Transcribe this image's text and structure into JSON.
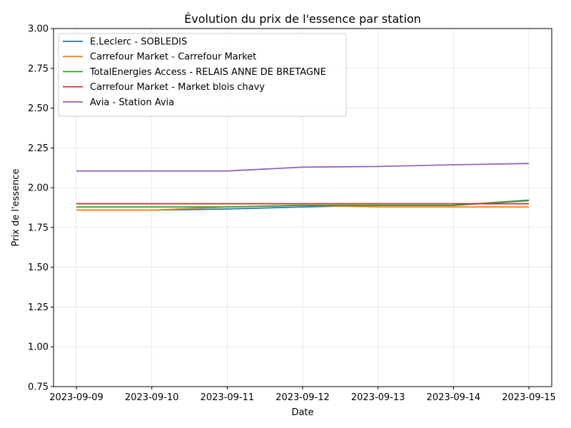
{
  "chart_data": {
    "type": "line",
    "title": "Évolution du prix de l'essence par station",
    "xlabel": "Date",
    "ylabel": "Prix de l'essence",
    "x": [
      "2023-09-09",
      "2023-09-10",
      "2023-09-11",
      "2023-09-12",
      "2023-09-13",
      "2023-09-14",
      "2023-09-15"
    ],
    "ylim": [
      0.75,
      3.0
    ],
    "yticks": [
      "0.75",
      "1.00",
      "1.25",
      "1.50",
      "1.75",
      "2.00",
      "2.25",
      "2.50",
      "2.75",
      "3.00"
    ],
    "grid": true,
    "legend_position": "top-left",
    "series": [
      {
        "name": "E.Leclerc - SOBLEDIS",
        "color": "#1f77b4",
        "values": [
          1.859,
          1.859,
          1.866,
          1.879,
          1.889,
          1.889,
          1.919
        ]
      },
      {
        "name": "Carrefour Market - Carrefour Market",
        "color": "#ff7f0e",
        "values": [
          1.859,
          1.859,
          1.879,
          1.889,
          1.879,
          1.879,
          1.879
        ]
      },
      {
        "name": "TotalEnergies Access - RELAIS ANNE DE BRETAGNE",
        "color": "#2ca02c",
        "values": [
          1.879,
          1.879,
          1.879,
          1.889,
          1.889,
          1.889,
          1.922
        ]
      },
      {
        "name": "Carrefour Market - Market blois chavy",
        "color": "#d62728",
        "values": [
          1.899,
          1.899,
          1.899,
          1.899,
          1.899,
          1.899,
          1.899
        ]
      },
      {
        "name": "Avia - Station Avia",
        "color": "#9467bd",
        "values": [
          2.105,
          2.105,
          2.105,
          2.129,
          2.133,
          2.144,
          2.152
        ]
      }
    ]
  }
}
